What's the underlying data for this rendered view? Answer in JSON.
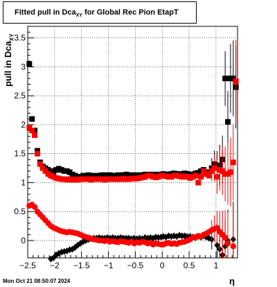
{
  "title": {
    "main": "Fitted pull in Dca",
    "sub": "XY",
    "rest": " for Global Rec Pion EtapT"
  },
  "ylabel": {
    "main": "pull in Dca",
    "sub": "XY"
  },
  "xlabel": "η",
  "footer": "Mon Oct 21 08:50:07 2024",
  "colors": {
    "series_black": "#000000",
    "series_red": "#ff0000"
  },
  "chart_data": {
    "type": "scatter",
    "title": "Fitted pull in DcaXY for Global Rec Pion EtapT",
    "xlabel": "η",
    "ylabel": "pull in DcaXY",
    "xlim": [
      -2.5,
      1.4
    ],
    "ylim": [
      -0.3,
      3.7
    ],
    "xticks": [
      -2.5,
      -2,
      -1.5,
      -1,
      -0.5,
      0,
      0.5,
      1
    ],
    "xtick_labels": [
      "−2.5",
      "−2",
      "−1.5",
      "−1",
      "−0.5",
      "0",
      "0.5",
      "1"
    ],
    "yticks": [
      0,
      0.5,
      1,
      1.5,
      2,
      2.5,
      3,
      3.5
    ],
    "ytick_labels": [
      "0",
      "0.5",
      "1",
      "1.5",
      "2",
      "2.5",
      "3",
      "3.5"
    ],
    "grid": true,
    "series": [
      {
        "marker": "square",
        "color": "#000000",
        "x": [
          -2.47,
          -2.42,
          -2.37,
          -2.32,
          -2.27,
          -2.22,
          -2.17,
          -2.12,
          -2.07,
          -2.02,
          -1.97,
          -1.92,
          -1.87,
          -1.82,
          -1.77,
          -1.72,
          -1.67,
          -1.62,
          -1.57,
          -1.52,
          -1.47,
          -1.42,
          -1.37,
          -1.32,
          -1.27,
          -1.22,
          -1.17,
          -1.12,
          -1.07,
          -1.02,
          -0.97,
          -0.92,
          -0.87,
          -0.82,
          -0.77,
          -0.72,
          -0.67,
          -0.62,
          -0.57,
          -0.52,
          -0.47,
          -0.42,
          -0.37,
          -0.32,
          -0.27,
          -0.22,
          -0.17,
          -0.12,
          -0.07,
          -0.02,
          0.02,
          0.07,
          0.12,
          0.17,
          0.22,
          0.27,
          0.32,
          0.37,
          0.42,
          0.47,
          0.52,
          0.57,
          0.62,
          0.67,
          0.72,
          0.77,
          0.82,
          0.87,
          0.92,
          0.97,
          1.02,
          1.07,
          1.12,
          1.17,
          1.22,
          1.27,
          1.32,
          1.37
        ],
        "y": [
          3.05,
          2.1,
          1.9,
          1.55,
          1.35,
          1.28,
          1.25,
          1.22,
          1.2,
          1.18,
          1.22,
          1.24,
          1.22,
          1.2,
          1.2,
          1.18,
          1.14,
          1.12,
          1.1,
          1.1,
          1.12,
          1.12,
          1.13,
          1.12,
          1.12,
          1.12,
          1.12,
          1.13,
          1.12,
          1.13,
          1.13,
          1.12,
          1.12,
          1.13,
          1.13,
          1.12,
          1.14,
          1.13,
          1.12,
          1.13,
          1.12,
          1.13,
          1.12,
          1.14,
          1.13,
          1.14,
          1.13,
          1.14,
          1.13,
          1.14,
          1.15,
          1.14,
          1.14,
          1.15,
          1.16,
          1.14,
          1.15,
          1.15,
          1.16,
          1.15,
          1.14,
          1.14,
          1.16,
          1.17,
          1.2,
          1.22,
          1.18,
          1.15,
          1.25,
          1.32,
          1.25,
          1.3,
          1.4,
          2.8,
          2.05,
          2.8,
          2.8,
          2.65
        ]
      },
      {
        "marker": "diamond",
        "color": "#000000",
        "x": [
          -2.07,
          -2.02,
          -1.97,
          -1.92,
          -1.87,
          -1.82,
          -1.77,
          -1.72,
          -1.67,
          -1.62,
          -1.57,
          -1.52,
          -1.47,
          -1.42,
          -1.37,
          -1.32,
          -1.27,
          -1.22,
          -1.17,
          -1.12,
          -1.07,
          -1.02,
          -0.97,
          -0.92,
          -0.87,
          -0.82,
          -0.77,
          -0.72,
          -0.67,
          -0.62,
          -0.57,
          -0.52,
          -0.47,
          -0.42,
          -0.37,
          -0.32,
          -0.27,
          -0.22,
          -0.17,
          -0.12,
          -0.07,
          -0.02,
          0.02,
          0.07,
          0.12,
          0.17,
          0.22,
          0.27,
          0.32,
          0.37,
          0.42,
          0.47,
          0.52,
          0.57,
          0.62,
          0.67,
          0.72,
          0.77,
          0.82,
          0.87,
          0.92,
          1.02,
          1.07,
          1.12,
          1.17,
          1.22,
          1.32
        ],
        "y": [
          -0.32,
          -0.3,
          -0.25,
          -0.22,
          -0.2,
          -0.19,
          -0.18,
          -0.16,
          -0.15,
          -0.12,
          -0.08,
          -0.05,
          -0.02,
          0.0,
          0.02,
          0.03,
          0.04,
          0.04,
          0.05,
          0.04,
          0.04,
          0.05,
          0.04,
          0.05,
          0.04,
          0.04,
          0.05,
          0.04,
          0.04,
          0.04,
          0.03,
          0.04,
          0.03,
          0.04,
          0.03,
          0.05,
          0.04,
          0.05,
          0.04,
          0.06,
          0.05,
          0.06,
          0.07,
          0.06,
          0.08,
          0.07,
          0.08,
          0.07,
          0.09,
          0.08,
          0.08,
          0.07,
          0.07,
          0.06,
          0.05,
          0.07,
          0.06,
          0.08,
          0.06,
          0.04,
          0.02,
          -0.08,
          -0.15,
          -0.25,
          -0.1,
          0.0,
          0.02
        ]
      },
      {
        "marker": "square",
        "color": "#ff0000",
        "x": [
          -2.47,
          -2.42,
          -2.37,
          -2.32,
          -2.27,
          -2.22,
          -2.17,
          -2.12,
          -2.07,
          -2.02,
          -1.97,
          -1.92,
          -1.87,
          -1.82,
          -1.77,
          -1.72,
          -1.67,
          -1.62,
          -1.57,
          -1.52,
          -1.47,
          -1.42,
          -1.37,
          -1.32,
          -1.27,
          -1.22,
          -1.17,
          -1.12,
          -1.07,
          -1.02,
          -0.97,
          -0.92,
          -0.87,
          -0.82,
          -0.77,
          -0.72,
          -0.67,
          -0.62,
          -0.57,
          -0.52,
          -0.47,
          -0.42,
          -0.37,
          -0.32,
          -0.27,
          -0.22,
          -0.17,
          -0.12,
          -0.07,
          -0.02,
          0.02,
          0.07,
          0.12,
          0.17,
          0.22,
          0.27,
          0.32,
          0.37,
          0.42,
          0.47,
          0.52,
          0.57,
          0.62,
          0.67,
          0.72,
          0.77,
          0.82,
          0.87,
          0.92,
          0.97,
          1.02,
          1.07,
          1.12,
          1.17,
          1.22,
          1.27,
          1.32,
          1.37
        ],
        "y": [
          1.95,
          1.9,
          1.82,
          1.5,
          1.32,
          1.25,
          1.2,
          1.15,
          1.12,
          1.1,
          1.08,
          1.07,
          1.06,
          1.06,
          1.05,
          1.06,
          1.05,
          1.05,
          1.05,
          1.06,
          1.06,
          1.06,
          1.06,
          1.05,
          1.06,
          1.06,
          1.06,
          1.06,
          1.05,
          1.06,
          1.06,
          1.06,
          1.06,
          1.06,
          1.06,
          1.07,
          1.06,
          1.06,
          1.07,
          1.07,
          1.07,
          1.08,
          1.09,
          1.1,
          1.12,
          1.12,
          1.1,
          1.09,
          1.1,
          1.12,
          1.12,
          1.11,
          1.1,
          1.1,
          1.12,
          1.12,
          1.11,
          1.1,
          1.11,
          1.1,
          1.08,
          1.1,
          1.12,
          1.0,
          1.1,
          1.2,
          1.15,
          1.12,
          1.2,
          1.25,
          1.1,
          1.22,
          1.2,
          1.15,
          1.15,
          1.18,
          1.35,
          2.75
        ]
      },
      {
        "marker": "circle",
        "color": "#ff0000",
        "x": [
          -2.47,
          -2.42,
          -2.37,
          -2.32,
          -2.27,
          -2.22,
          -2.17,
          -2.12,
          -2.07,
          -2.02,
          -1.97,
          -1.92,
          -1.87,
          -1.82,
          -1.77,
          -1.72,
          -1.67,
          -1.62,
          -1.57,
          -1.52,
          -1.47,
          -1.42,
          -1.37,
          -1.32,
          -1.27,
          -1.22,
          -1.17,
          -1.12,
          -1.07,
          -1.02,
          -0.97,
          -0.92,
          -0.87,
          -0.82,
          -0.77,
          -0.72,
          -0.67,
          -0.62,
          -0.57,
          -0.52,
          -0.47,
          -0.42,
          -0.37,
          -0.32,
          -0.27,
          -0.22,
          -0.17,
          -0.12,
          -0.07,
          -0.02,
          0.02,
          0.07,
          0.12,
          0.17,
          0.22,
          0.27,
          0.32,
          0.37,
          0.42,
          0.47,
          0.52,
          0.57,
          0.62,
          0.67,
          0.72,
          0.77,
          0.82,
          0.87,
          0.92,
          0.97,
          1.02,
          1.07,
          1.12,
          1.17,
          1.22,
          1.32
        ],
        "y": [
          0.6,
          0.62,
          0.58,
          0.5,
          0.45,
          0.4,
          0.35,
          0.3,
          0.25,
          0.22,
          0.2,
          0.18,
          0.16,
          0.15,
          0.14,
          0.15,
          0.14,
          0.13,
          0.12,
          0.1,
          0.08,
          0.06,
          0.05,
          0.03,
          0.02,
          0.01,
          0.0,
          0.0,
          -0.01,
          0.0,
          -0.02,
          -0.01,
          -0.02,
          -0.03,
          -0.01,
          -0.02,
          -0.03,
          -0.04,
          -0.02,
          -0.05,
          -0.03,
          -0.04,
          -0.02,
          -0.03,
          -0.05,
          -0.04,
          -0.07,
          -0.05,
          -0.06,
          -0.07,
          -0.07,
          -0.05,
          -0.04,
          -0.06,
          -0.05,
          -0.06,
          -0.04,
          -0.03,
          -0.02,
          0.0,
          0.02,
          0.05,
          0.06,
          0.08,
          0.07,
          0.1,
          0.12,
          0.15,
          0.18,
          0.2,
          0.22,
          0.15,
          0.1,
          0.05,
          -0.05,
          -0.1
        ]
      }
    ]
  }
}
